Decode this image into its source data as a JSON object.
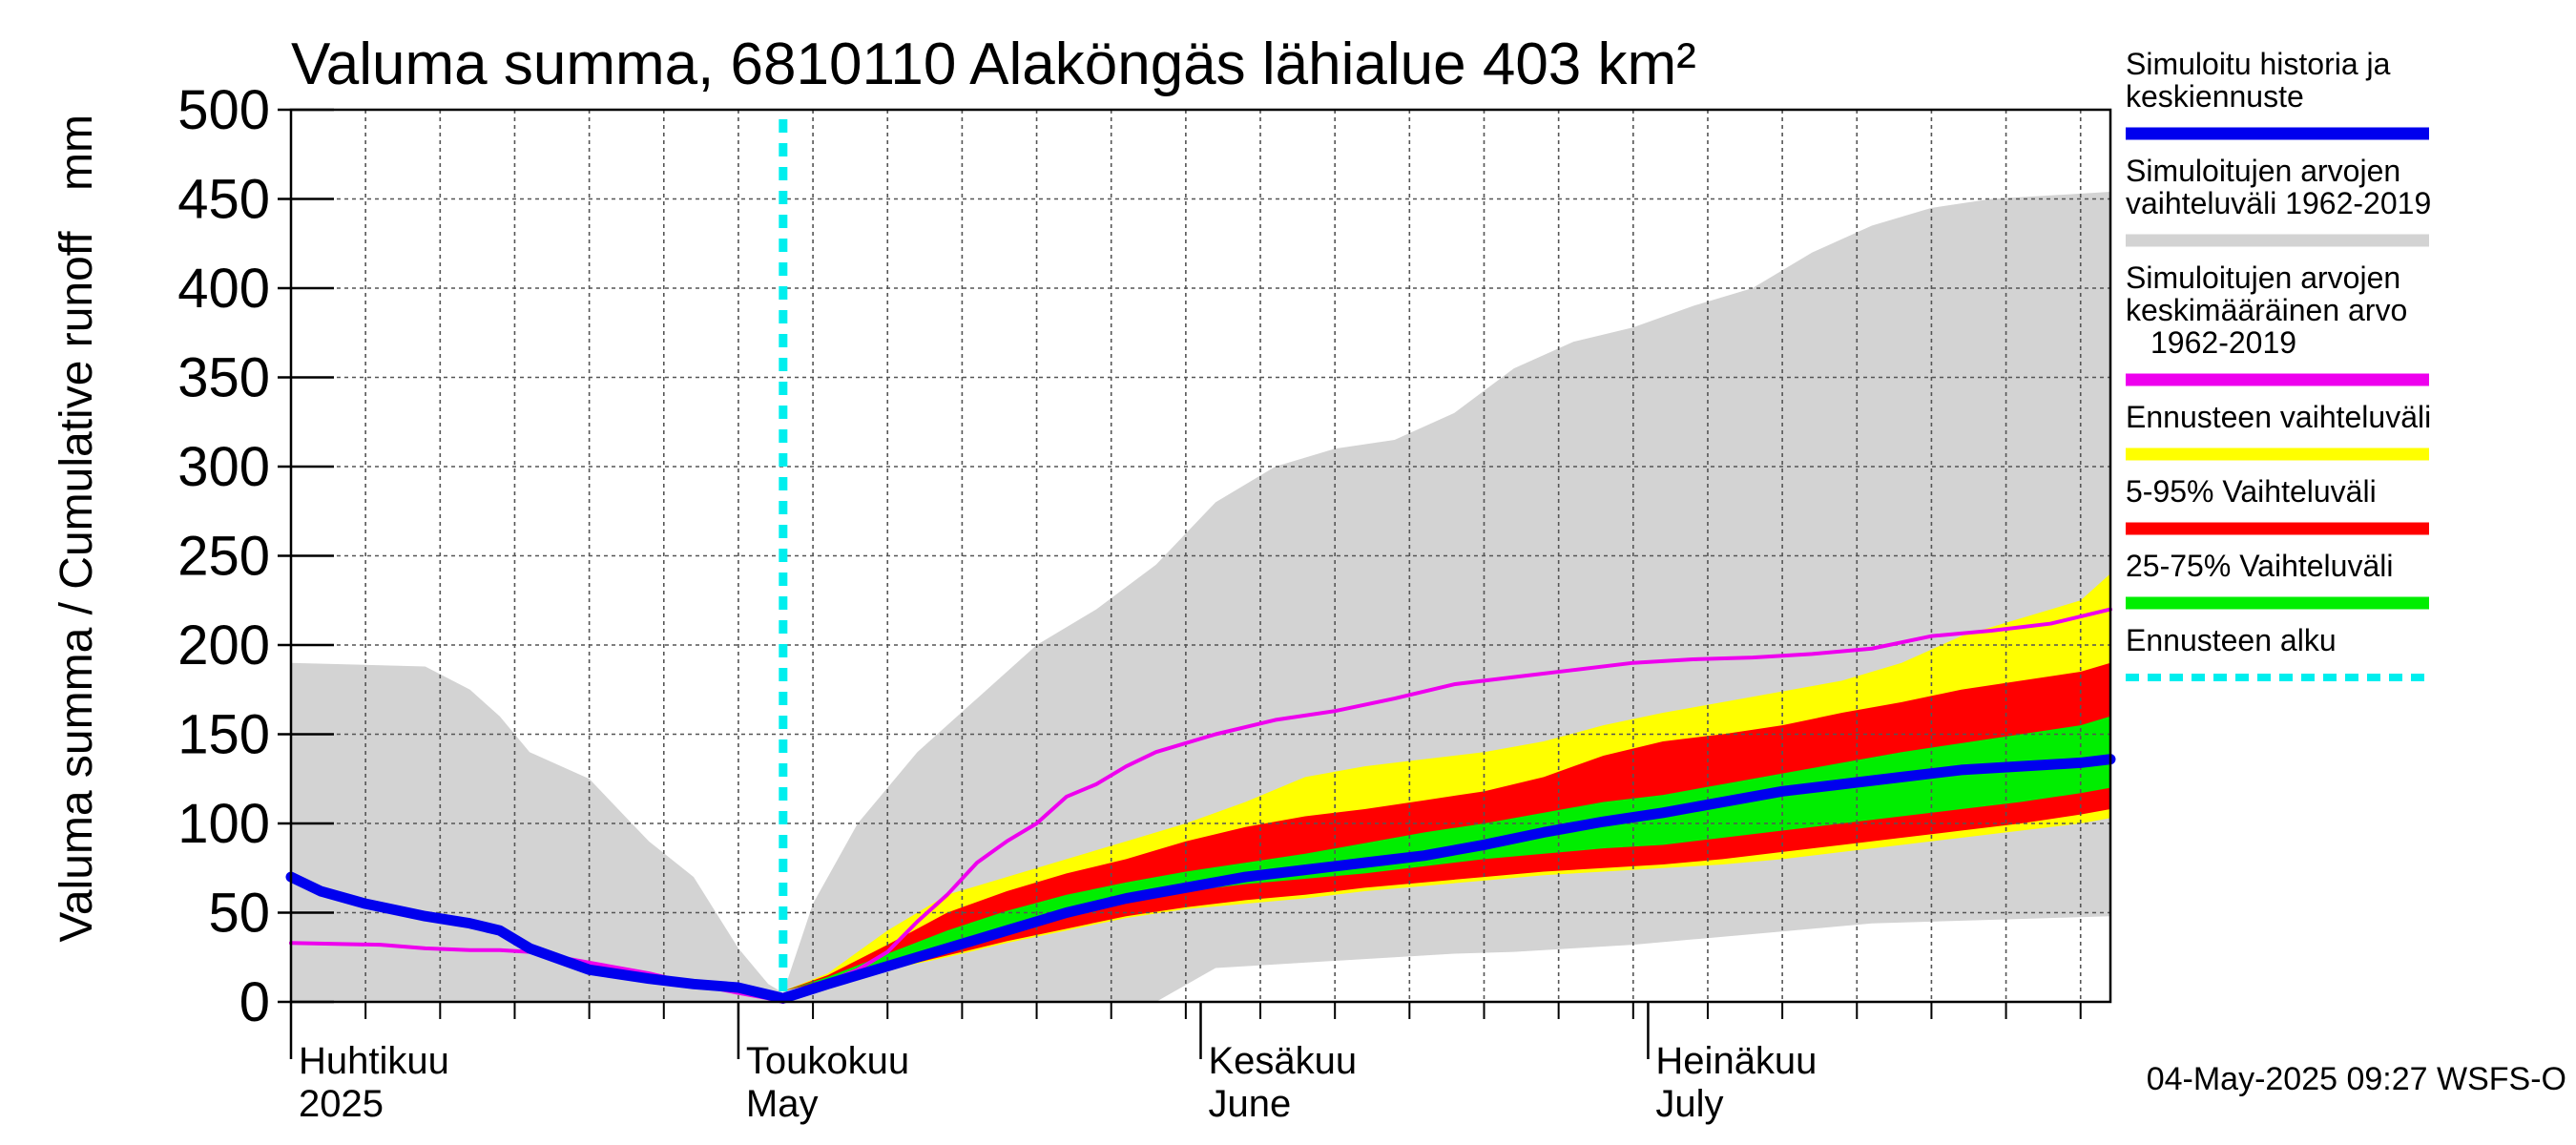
{
  "chart_data": {
    "type": "area",
    "title": "Valuma summa, 6810110 Alaköngäs lähialue 403 km²",
    "ylabel": "Valuma summa / Cumulative runoff",
    "yunit": "mm",
    "ylim": [
      0,
      500
    ],
    "yticks": [
      0,
      50,
      100,
      150,
      200,
      250,
      300,
      350,
      400,
      450,
      500
    ],
    "x_unit": "days since 1 April 2025",
    "xlim": [
      0,
      122
    ],
    "grid": true,
    "forecast_start_day": 33,
    "months": [
      {
        "day": 0,
        "fi": "Huhtikuu",
        "en": "2025"
      },
      {
        "day": 30,
        "fi": "Toukokuu",
        "en": "May"
      },
      {
        "day": 61,
        "fi": "Kesäkuu",
        "en": "June"
      },
      {
        "day": 91,
        "fi": "Heinäkuu",
        "en": "July"
      }
    ],
    "series": [
      {
        "name": "Simuloitujen arvojen vaihteluväli 1962-2019",
        "kind": "band",
        "color": "#d3d3d3",
        "x": [
          0,
          9,
          12,
          14,
          16,
          20,
          24,
          27,
          30,
          32,
          33,
          35,
          38,
          42,
          46,
          50,
          54,
          58,
          62,
          66,
          70,
          74,
          78,
          82,
          86,
          90,
          94,
          98,
          102,
          106,
          110,
          114,
          118,
          122
        ],
        "lower": [
          0,
          0,
          0,
          0,
          0,
          0,
          0,
          0,
          0,
          0,
          0,
          0,
          0,
          0,
          0,
          0,
          0,
          0,
          19,
          21,
          23,
          25,
          27,
          28,
          30,
          32,
          35,
          38,
          41,
          44,
          45,
          46,
          47,
          48
        ],
        "upper": [
          190,
          188,
          175,
          160,
          140,
          125,
          90,
          70,
          30,
          10,
          5,
          55,
          100,
          140,
          170,
          200,
          220,
          245,
          280,
          300,
          310,
          315,
          330,
          355,
          370,
          378,
          390,
          400,
          420,
          435,
          445,
          450,
          452,
          454
        ]
      },
      {
        "name": "Ennusteen vaihteluväli",
        "kind": "band",
        "color": "#ffff00",
        "x": [
          33,
          36,
          40,
          44,
          48,
          52,
          56,
          60,
          64,
          68,
          72,
          76,
          80,
          84,
          88,
          92,
          96,
          100,
          104,
          108,
          112,
          116,
          120,
          122
        ],
        "lower": [
          6,
          12,
          18,
          25,
          33,
          40,
          47,
          52,
          55,
          58,
          62,
          65,
          68,
          71,
          73,
          75,
          77,
          80,
          84,
          88,
          92,
          96,
          100,
          103
        ],
        "upper": [
          6,
          16,
          40,
          60,
          70,
          80,
          90,
          100,
          112,
          126,
          132,
          136,
          140,
          146,
          155,
          162,
          168,
          174,
          180,
          190,
          205,
          215,
          225,
          240
        ]
      },
      {
        "name": "5-95% Vaihteluväli",
        "kind": "band",
        "color": "#ff0000",
        "x": [
          33,
          36,
          40,
          44,
          48,
          52,
          56,
          60,
          64,
          68,
          72,
          76,
          80,
          84,
          88,
          92,
          96,
          100,
          104,
          108,
          112,
          116,
          120,
          122
        ],
        "lower": [
          6,
          12,
          18,
          26,
          34,
          41,
          48,
          53,
          57,
          60,
          64,
          67,
          70,
          73,
          75,
          77,
          80,
          84,
          88,
          92,
          96,
          100,
          105,
          108
        ],
        "upper": [
          6,
          15,
          32,
          50,
          62,
          72,
          80,
          90,
          98,
          104,
          108,
          113,
          118,
          126,
          138,
          146,
          150,
          155,
          162,
          168,
          175,
          180,
          185,
          190
        ]
      },
      {
        "name": "25-75% Vaihteluväli",
        "kind": "band",
        "color": "#00ee00",
        "x": [
          33,
          36,
          40,
          44,
          48,
          52,
          56,
          60,
          64,
          68,
          72,
          76,
          80,
          84,
          88,
          92,
          96,
          100,
          104,
          108,
          112,
          116,
          120,
          122
        ],
        "lower": [
          6,
          13,
          22,
          32,
          42,
          50,
          57,
          62,
          66,
          69,
          72,
          76,
          80,
          83,
          86,
          88,
          92,
          96,
          100,
          104,
          108,
          112,
          117,
          120
        ],
        "upper": [
          6,
          14,
          27,
          40,
          51,
          60,
          67,
          73,
          78,
          83,
          89,
          95,
          100,
          106,
          112,
          116,
          122,
          128,
          134,
          140,
          145,
          150,
          155,
          160
        ]
      },
      {
        "name": "Simuloitujen arvojen keskimääräinen arvo 1962-2019",
        "kind": "line",
        "color": "#ee00ee",
        "x": [
          0,
          6,
          9,
          12,
          14,
          16,
          20,
          24,
          27,
          30,
          32,
          33,
          35,
          38,
          40,
          42,
          44,
          46,
          48,
          50,
          52,
          54,
          56,
          58,
          62,
          66,
          70,
          74,
          78,
          82,
          86,
          90,
          94,
          98,
          102,
          106,
          110,
          114,
          118,
          122
        ],
        "y": [
          33,
          32,
          30,
          29,
          29,
          28,
          22,
          16,
          10,
          5,
          2,
          0,
          8,
          18,
          28,
          45,
          60,
          78,
          90,
          100,
          115,
          122,
          132,
          140,
          150,
          158,
          163,
          170,
          178,
          182,
          186,
          190,
          192,
          193,
          195,
          198,
          205,
          208,
          212,
          220
        ]
      },
      {
        "name": "Simuloitu historia ja keskiennuste",
        "kind": "line",
        "color": "#0000ee",
        "x": [
          0,
          2,
          5,
          9,
          12,
          14,
          16,
          20,
          24,
          27,
          30,
          32,
          33,
          36,
          40,
          44,
          48,
          52,
          56,
          60,
          64,
          68,
          72,
          76,
          80,
          84,
          88,
          92,
          96,
          100,
          104,
          108,
          112,
          116,
          120,
          122
        ],
        "y": [
          70,
          62,
          55,
          48,
          44,
          40,
          30,
          18,
          13,
          10,
          8,
          4,
          2,
          10,
          20,
          30,
          40,
          50,
          58,
          64,
          70,
          74,
          78,
          82,
          88,
          95,
          101,
          106,
          112,
          118,
          122,
          126,
          130,
          132,
          134,
          136
        ]
      }
    ],
    "legend": [
      {
        "label": "Simuloitu historia ja keskiennuste",
        "lines": [
          "Simuloitu historia ja",
          "keskiennuste"
        ],
        "color": "#0000ee",
        "style": "solid"
      },
      {
        "label": "Simuloitujen arvojen vaihteluväli 1962-2019",
        "lines": [
          "Simuloitujen arvojen",
          "vaihteluväli 1962-2019"
        ],
        "color": "#d3d3d3",
        "style": "solid"
      },
      {
        "label": "Simuloitujen arvojen keskimääräinen arvo 1962-2019",
        "lines": [
          "Simuloitujen arvojen",
          "keskimääräinen arvo",
          "1962-2019"
        ],
        "color": "#ee00ee",
        "style": "solid"
      },
      {
        "label": "Ennusteen vaihteluväli",
        "lines": [
          "Ennusteen vaihteluväli"
        ],
        "color": "#ffff00",
        "style": "solid"
      },
      {
        "label": "5-95% Vaihteluväli",
        "lines": [
          "5-95% Vaihteluväli"
        ],
        "color": "#ff0000",
        "style": "solid"
      },
      {
        "label": "25-75% Vaihteluväli",
        "lines": [
          "25-75% Vaihteluväli"
        ],
        "color": "#00ee00",
        "style": "solid"
      },
      {
        "label": "Ennusteen alku",
        "lines": [
          "Ennusteen alku"
        ],
        "color": "#00eeee",
        "style": "dashed"
      }
    ],
    "timestamp": "04-May-2025 09:27 WSFS-O"
  }
}
